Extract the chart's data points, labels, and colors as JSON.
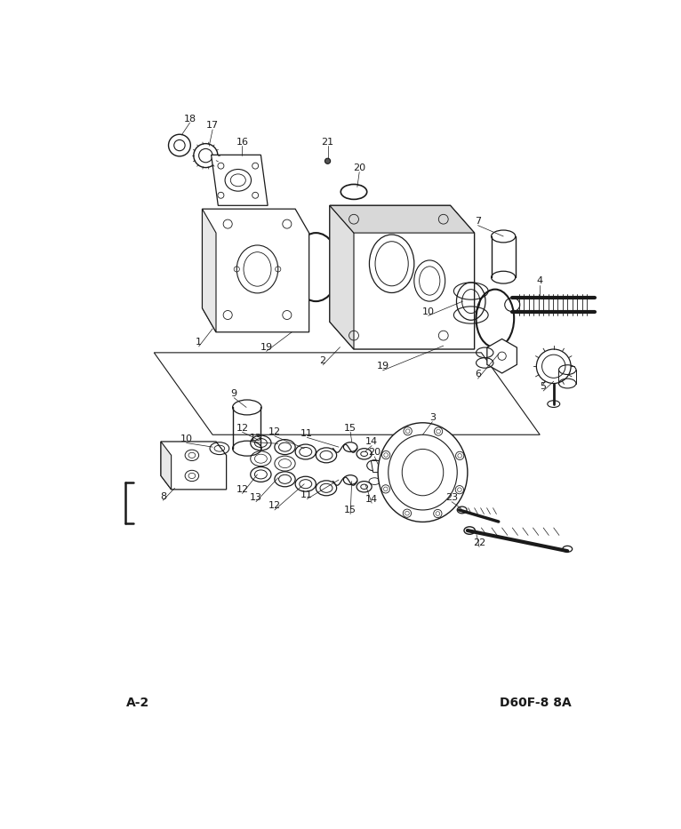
{
  "bg_color": "#ffffff",
  "line_color": "#1a1a1a",
  "text_color": "#1a1a1a",
  "bottom_left_text": "A-2",
  "bottom_right_text": "D60F-8 8A",
  "figsize": [
    7.66,
    9.33
  ],
  "dpi": 100
}
